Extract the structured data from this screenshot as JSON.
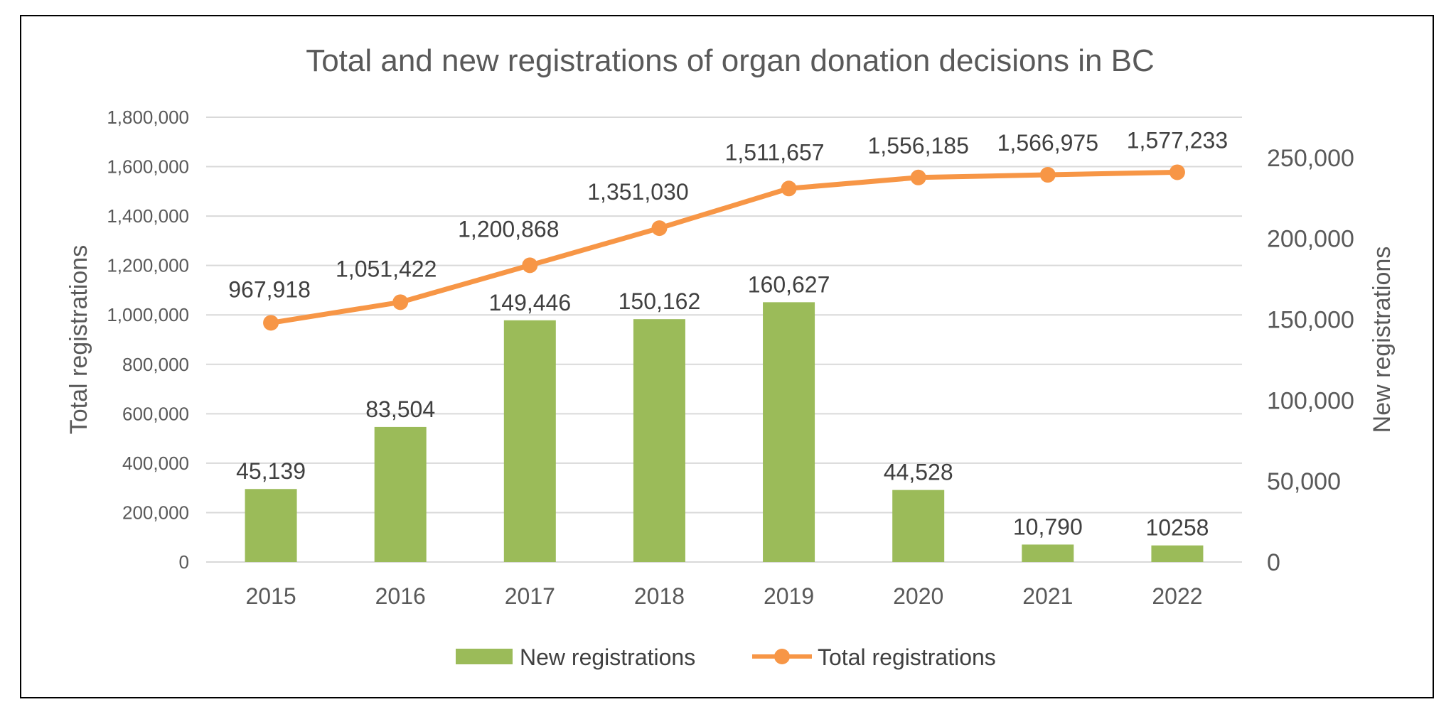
{
  "chart_data": {
    "type": "bar",
    "title": "Total and new registrations of organ donation decisions in BC",
    "categories": [
      "2015",
      "2016",
      "2017",
      "2018",
      "2019",
      "2020",
      "2021",
      "2022"
    ],
    "series": [
      {
        "name": "New registrations",
        "type": "bar",
        "axis": "right",
        "color": "#9BBB59",
        "values": [
          45139,
          83504,
          149446,
          150162,
          160627,
          44528,
          10790,
          10258
        ],
        "labels": [
          "45,139",
          "83,504",
          "149,446",
          "150,162",
          "160,627",
          "44,528",
          "10,790",
          "10258"
        ]
      },
      {
        "name": "Total registrations",
        "type": "line",
        "axis": "left",
        "color": "#F79646",
        "values": [
          967918,
          1051422,
          1200868,
          1351030,
          1511657,
          1556185,
          1566975,
          1577233
        ],
        "labels": [
          "967,918",
          "1,051,422",
          "1,200,868",
          "1,351,030",
          "1,511,657",
          "1,556,185",
          "1,566,975",
          "1,577,233"
        ]
      }
    ],
    "y_left": {
      "label": "Total registrations",
      "range": [
        0,
        1800000
      ],
      "ticks": [
        0,
        200000,
        400000,
        600000,
        800000,
        1000000,
        1200000,
        1400000,
        1600000,
        1800000
      ],
      "tick_labels": [
        "0",
        "200,000",
        "400,000",
        "600,000",
        "800,000",
        "1,000,000",
        "1,200,000",
        "1,400,000",
        "1,600,000",
        "1,800,000"
      ]
    },
    "y_right": {
      "label": "New registrations",
      "range": [
        0,
        275000
      ],
      "ticks": [
        0,
        50000,
        100000,
        150000,
        200000,
        250000
      ],
      "tick_labels": [
        "0",
        "50,000",
        "100,000",
        "150,000",
        "200,000",
        "250,000"
      ]
    },
    "grid": true,
    "legend": {
      "position": "bottom",
      "entries": [
        "New registrations",
        "Total registrations"
      ]
    }
  }
}
